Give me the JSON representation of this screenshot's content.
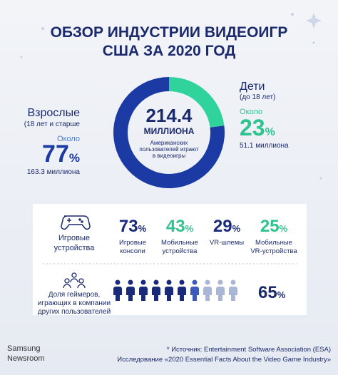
{
  "header": {
    "title_line1": "ОБЗОР ИНДУСТРИИ ВИДЕОИГР",
    "title_line2": "США ЗА 2020 ГОД"
  },
  "donut": {
    "total": "214.4",
    "total_unit": "МИЛЛИОНА",
    "caption": [
      "Американских",
      "пользователей играют",
      "в видеоигры"
    ],
    "segments": [
      {
        "name": "Дети",
        "note": "(до 18 лет)",
        "prefix": "Около",
        "value": 23,
        "unit": "%",
        "count": "51.1 миллиона",
        "color": "#2fd39b"
      },
      {
        "name": "Взрослые",
        "note": "(18 лет и старше",
        "prefix": "Около",
        "value": 77,
        "unit": "%",
        "count": "163.3 миллиона",
        "color": "#1c3aa3"
      }
    ]
  },
  "devices": {
    "label": [
      "Игровые",
      "устройства"
    ],
    "items": [
      {
        "value": 73,
        "unit": "%",
        "label": [
          "Игровые",
          "консоли"
        ],
        "color": "#1a2a7a"
      },
      {
        "value": 43,
        "unit": "%",
        "label": [
          "Мобильные",
          "устройства"
        ],
        "color": "#2fc48f"
      },
      {
        "value": 29,
        "unit": "%",
        "label": [
          "VR-шлемы"
        ],
        "color": "#1a2a7a"
      },
      {
        "value": 25,
        "unit": "%",
        "label": [
          "Мобильные",
          "VR-устройства"
        ],
        "color": "#2fc48f"
      }
    ]
  },
  "social": {
    "label": [
      "Доля геймеров,",
      "играющих в компании",
      "других пользователей"
    ],
    "value": 65,
    "unit": "%"
  },
  "footer": {
    "brand": [
      "Samsung",
      "Newsroom"
    ],
    "source": [
      "* Источник: Entertainment Software Association (ESA)",
      "Исследование «2020 Essential Facts About the Video Game Industry»"
    ]
  }
}
